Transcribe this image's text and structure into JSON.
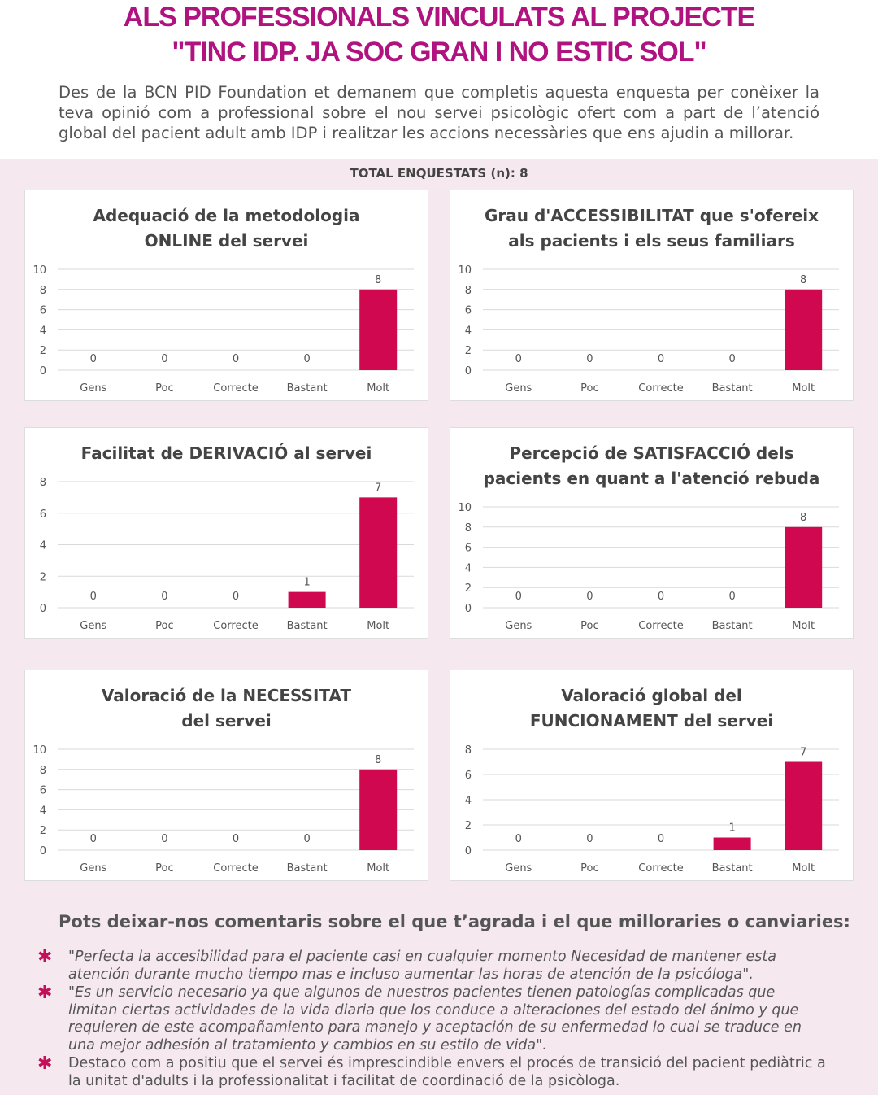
{
  "header": {
    "title_line1": "ALS PROFESSIONALS VINCULATS AL PROJECTE",
    "title_line2": "\"TINC IDP. JA SOC GRAN I NO ESTIC SOL\"",
    "intro": "Des de la BCN PID Foundation et demanem que completis aquesta enquesta per conèixer la teva opinió com a professional sobre el nou servei psicològic ofert com a part de l’atenció global del pacient adult amb IDP i realitzar les accions necessàries que ens ajudin a millorar.",
    "total": "TOTAL ENQUESTATS (n):  8"
  },
  "colors": {
    "bar": "#d0084f",
    "title": "#b0127f",
    "background": "#f5e8ee"
  },
  "chart_data": [
    {
      "type": "bar",
      "title": [
        "Adequació de la metodologia",
        "ONLINE del servei"
      ],
      "categories": [
        "Gens",
        "Poc",
        "Correcte",
        "Bastant",
        "Molt"
      ],
      "values": [
        0,
        0,
        0,
        0,
        8
      ],
      "ylim": [
        0,
        10
      ],
      "yticks": [
        "0",
        "2",
        "4",
        "6",
        "8",
        "10"
      ]
    },
    {
      "type": "bar",
      "title": [
        "Grau d'ACCESSIBILITAT que s'ofereix",
        "als pacients i els seus familiars"
      ],
      "categories": [
        "Gens",
        "Poc",
        "Correcte",
        "Bastant",
        "Molt"
      ],
      "values": [
        0,
        0,
        0,
        0,
        8
      ],
      "ylim": [
        0,
        10
      ],
      "yticks": [
        "0",
        "2",
        "4",
        "6",
        "8",
        "10"
      ]
    },
    {
      "type": "bar",
      "title": [
        "Facilitat de DERIVACIÓ al servei"
      ],
      "categories": [
        "Gens",
        "Poc",
        "Correcte",
        "Bastant",
        "Molt"
      ],
      "values": [
        0,
        0,
        0,
        1,
        7
      ],
      "ylim": [
        0,
        8
      ],
      "yticks": [
        "0",
        "2",
        "4",
        "6",
        "8"
      ]
    },
    {
      "type": "bar",
      "title": [
        "Percepció de SATISFACCIÓ dels",
        "pacients en quant a l'atenció rebuda"
      ],
      "categories": [
        "Gens",
        "Poc",
        "Correcte",
        "Bastant",
        "Molt"
      ],
      "values": [
        0,
        0,
        0,
        0,
        8
      ],
      "ylim": [
        0,
        10
      ],
      "yticks": [
        "0",
        "2",
        "4",
        "6",
        "8",
        "10"
      ]
    },
    {
      "type": "bar",
      "title": [
        "Valoració de la NECESSITAT",
        "del servei"
      ],
      "categories": [
        "Gens",
        "Poc",
        "Correcte",
        "Bastant",
        "Molt"
      ],
      "values": [
        0,
        0,
        0,
        0,
        8
      ],
      "ylim": [
        0,
        10
      ],
      "yticks": [
        "0",
        "2",
        "4",
        "6",
        "8",
        "10"
      ]
    },
    {
      "type": "bar",
      "title": [
        "Valoració global del",
        "FUNCIONAMENT del servei"
      ],
      "categories": [
        "Gens",
        "Poc",
        "Correcte",
        "Bastant",
        "Molt"
      ],
      "values": [
        0,
        0,
        0,
        1,
        7
      ],
      "ylim": [
        0,
        8
      ],
      "yticks": [
        "0",
        "2",
        "4",
        "6",
        "8"
      ]
    }
  ],
  "comments": {
    "heading": "Pots deixar-nos comentaris sobre el que t’agrada i el que milloraries o canviaries:",
    "items": [
      "\"Perfecta la accesibilidad para el paciente casi en cualquier momento Necesidad de mantener esta atención durante mucho tiempo mas e incluso aumentar las horas de atención de la psicóloga\".",
      "\"Es un servicio necesario ya que algunos de nuestros pacientes tienen patologías complicadas que limitan ciertas actividades de la vida diaria que los conduce a alteraciones del estado del ánimo y que requieren de este acompañamiento para manejo y aceptación de su enfermedad lo cual se traduce en una mejor adhesión al tratamiento y cambios en su estilo de vida\".",
      "Destaco com a positiu que el servei és imprescindible envers el procés de transició del pacient pediàtric a la unitat d'adults i la professionalitat i facilitat de coordinació de la psicòloga."
    ]
  }
}
